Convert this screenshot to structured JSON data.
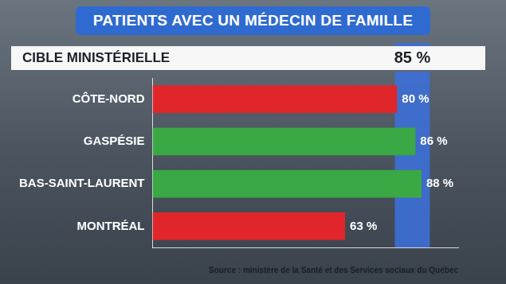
{
  "chart_data": {
    "type": "bar",
    "orientation": "horizontal",
    "title": "PATIENTS AVEC UN MÉDECIN DE FAMILLE",
    "categories": [
      "CÔTE-NORD",
      "GASPÉSIE",
      "BAS-SAINT-LAURENT",
      "MONTRÉAL"
    ],
    "values": [
      80,
      86,
      88,
      63
    ],
    "value_labels": [
      "80 %",
      "86 %",
      "88 %",
      "63 %"
    ],
    "colors": [
      "#e0262b",
      "#3aa845",
      "#3aa845",
      "#e0262b"
    ],
    "xlim": [
      0,
      100
    ],
    "grid": false,
    "data_labels": true,
    "tick_labels": "y",
    "target": {
      "label": "CIBLE MINISTÉRIELLE",
      "value": 85,
      "value_label": "85 %"
    },
    "source": "Source : ministère de la Santé et des Services sociaux du Québec"
  }
}
